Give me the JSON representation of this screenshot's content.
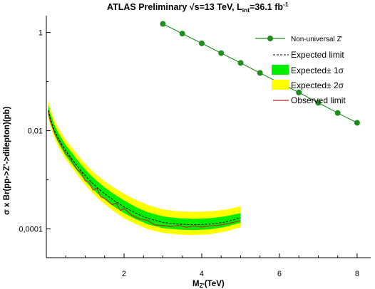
{
  "chart_data": {
    "type": "line",
    "title": "ATLAS Preliminary √s=13 TeV, L_int=36.1 fb-1",
    "title_parts": {
      "main": "ATLAS Preliminary ",
      "sqrt": "√",
      "energy": "s=13 TeV, L",
      "lumi_sub": "int",
      "lumi_value": "=36.1 fb",
      "lumi_exp": "-1"
    },
    "xlabel": "M_Z'(TeV)",
    "xlabel_parts": {
      "main": "M",
      "sub": "Z'",
      "unit": "(TeV)"
    },
    "ylabel": "σ x Br(pp->Z'->dilepton)(pb)",
    "x_range": [
      0.0,
      8.35
    ],
    "y_range": [
      2.6e-05,
      2.2
    ],
    "y_scale": "log",
    "x_ticks": [
      "2",
      "4",
      "6",
      "8"
    ],
    "x_tick_values": [
      2,
      4,
      6,
      8
    ],
    "y_ticks": [
      "1",
      "0,01",
      "0,0001"
    ],
    "y_tick_values": [
      1,
      0.01,
      0.0001
    ],
    "legend_position": "top-right",
    "legend": [
      {
        "label": "Non-universal Z'",
        "style": "line-marker",
        "color": "#1e8c1e"
      },
      {
        "label": "Expected limit",
        "style": "dashed",
        "color": "#000000"
      },
      {
        "label": "Expected± 1σ",
        "style": "band",
        "color": "#00ee00"
      },
      {
        "label": "Expected± 2σ",
        "style": "band",
        "color": "#ffff00"
      },
      {
        "label": "Observed limit",
        "style": "line",
        "color": "#cc2222"
      }
    ],
    "series": [
      {
        "name": "Non-universal Z'",
        "color": "#1e8c1e",
        "x": [
          3.0,
          3.5,
          4.0,
          4.5,
          5.0,
          5.5,
          6.0,
          6.5,
          7.0,
          7.5,
          8.0
        ],
        "y": [
          1.5,
          0.95,
          0.6,
          0.38,
          0.24,
          0.15,
          0.095,
          0.06,
          0.037,
          0.023,
          0.0145
        ]
      },
      {
        "name": "Expected limit",
        "color": "#000000",
        "x": [
          0.05,
          0.1,
          0.2,
          0.3,
          0.4,
          0.5,
          0.7,
          0.9,
          1.1,
          1.3,
          1.5,
          1.7,
          2.0,
          2.3,
          2.6,
          3.0,
          3.4,
          3.8,
          4.2,
          4.6,
          5.0
        ],
        "y": [
          0.026,
          0.018,
          0.0105,
          0.0072,
          0.0052,
          0.0039,
          0.0024,
          0.0015,
          0.001,
          0.0007,
          0.00052,
          0.0004,
          0.00028,
          0.00021,
          0.000165,
          0.000135,
          0.000125,
          0.000122,
          0.000125,
          0.000138,
          0.000168
        ]
      },
      {
        "name": "Observed limit",
        "color": "#cc2222",
        "x": [
          0.05,
          0.1,
          0.2,
          0.3,
          0.4,
          0.5,
          0.6,
          0.7,
          0.8,
          0.9,
          1.0,
          1.1,
          1.2,
          1.3,
          1.4,
          1.5,
          1.6,
          1.7,
          1.8,
          1.9,
          2.0,
          2.2,
          2.4,
          2.6,
          2.8,
          3.0,
          3.2,
          3.4,
          3.6,
          3.8,
          4.0,
          4.2,
          4.4,
          4.6,
          4.8,
          5.0
        ],
        "y": [
          0.024,
          0.016,
          0.0095,
          0.0065,
          0.0048,
          0.0034,
          0.0029,
          0.0021,
          0.0016,
          0.0014,
          0.00095,
          0.0009,
          0.00062,
          0.00068,
          0.00045,
          0.00042,
          0.00036,
          0.00031,
          0.00034,
          0.00024,
          0.00026,
          0.00019,
          0.00016,
          0.00015,
          0.00012,
          0.000118,
          0.000112,
          0.000118,
          0.000108,
          0.000115,
          0.00011,
          0.000115,
          0.000118,
          0.000125,
          0.000135,
          0.000148
        ]
      }
    ],
    "bands": [
      {
        "name": "Expected± 2σ",
        "color": "#ffff00",
        "x": [
          0.05,
          0.1,
          0.2,
          0.3,
          0.4,
          0.5,
          0.7,
          0.9,
          1.1,
          1.3,
          1.5,
          1.7,
          2.0,
          2.3,
          2.6,
          3.0,
          3.4,
          3.8,
          4.2,
          4.6,
          5.0
        ],
        "low": [
          0.018,
          0.0125,
          0.0072,
          0.0049,
          0.0035,
          0.0026,
          0.0016,
          0.00098,
          0.00064,
          0.00044,
          0.00032,
          0.00024,
          0.000165,
          0.000125,
          0.0001,
          8.3e-05,
          7.7e-05,
          7.5e-05,
          7.8e-05,
          8.8e-05,
          0.000108
        ],
        "high": [
          0.042,
          0.029,
          0.017,
          0.0118,
          0.0086,
          0.0065,
          0.0041,
          0.0026,
          0.00175,
          0.00125,
          0.00094,
          0.00073,
          0.00052,
          0.00039,
          0.00031,
          0.00025,
          0.000228,
          0.000222,
          0.000228,
          0.000246,
          0.00029
        ]
      },
      {
        "name": "Expected± 1σ",
        "color": "#00ee00",
        "x": [
          0.05,
          0.1,
          0.2,
          0.3,
          0.4,
          0.5,
          0.7,
          0.9,
          1.1,
          1.3,
          1.5,
          1.7,
          2.0,
          2.3,
          2.6,
          3.0,
          3.4,
          3.8,
          4.2,
          4.6,
          5.0
        ],
        "low": [
          0.021,
          0.0148,
          0.0086,
          0.0059,
          0.0042,
          0.0031,
          0.0019,
          0.0012,
          0.00078,
          0.00054,
          0.0004,
          0.0003,
          0.00021,
          0.000158,
          0.000125,
          0.000104,
          9.7e-05,
          9.5e-05,
          9.8e-05,
          0.00011,
          0.000134
        ],
        "high": [
          0.034,
          0.023,
          0.0135,
          0.0093,
          0.0068,
          0.0051,
          0.0032,
          0.002,
          0.00134,
          0.00095,
          0.0007,
          0.00054,
          0.00038,
          0.00028,
          0.00022,
          0.00018,
          0.000165,
          0.00016,
          0.000165,
          0.00018,
          0.00021
        ]
      }
    ]
  }
}
